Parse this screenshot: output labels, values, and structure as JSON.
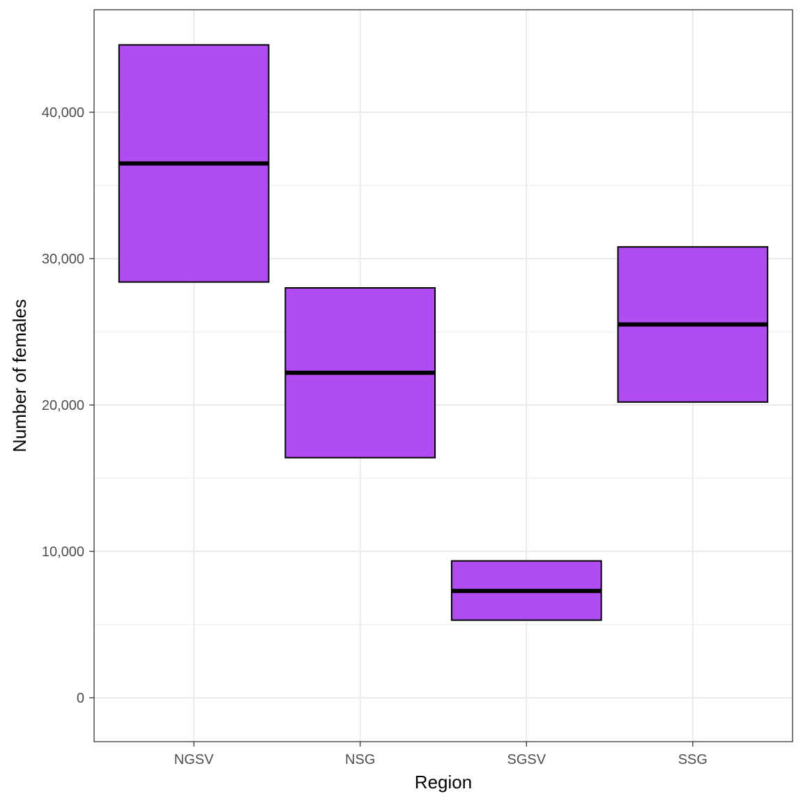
{
  "chart_data": {
    "type": "crossbar",
    "xlabel": "Region",
    "ylabel": "Number of females",
    "categories": [
      "NGSV",
      "NSG",
      "SGSV",
      "SSG"
    ],
    "series": [
      {
        "lower": [
          28400,
          16400,
          5300,
          20200
        ],
        "middle": [
          36500,
          22200,
          7300,
          25500
        ],
        "upper": [
          44600,
          28000,
          9350,
          30800
        ]
      }
    ],
    "ylim": [
      -3000,
      47000
    ],
    "y_ticks": [
      0,
      10000,
      20000,
      30000,
      40000
    ],
    "y_tick_labels": [
      "0",
      "10,000",
      "20,000",
      "30,000",
      "40,000"
    ],
    "grid": true,
    "legend": "none",
    "colors": {
      "fill": "#b04cf2",
      "outline": "#000000",
      "grid": "#ebebeb",
      "panel_border": "#333333"
    }
  }
}
